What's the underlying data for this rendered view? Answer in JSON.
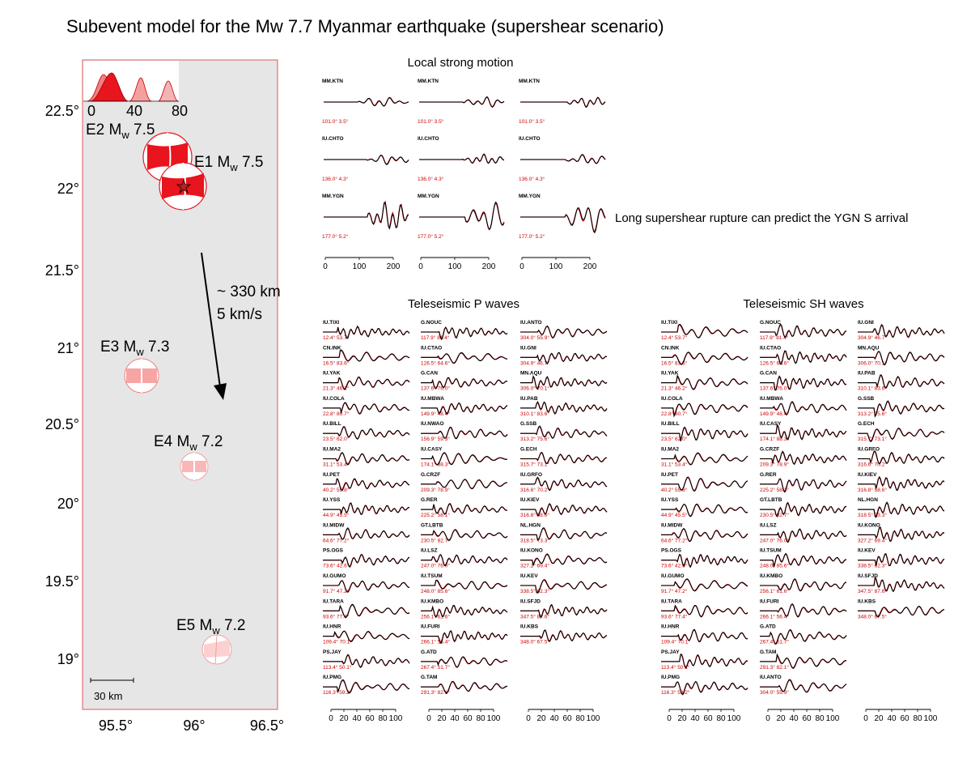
{
  "title": "Subevent model for the Mw 7.7 Myanmar earthquake (supershear scenario)",
  "colors": {
    "red": "#e8141e",
    "trace": "#000000",
    "map_bg": "#e6e6e6",
    "map_border": "#e05a5a"
  },
  "map": {
    "lon_ticks": [
      "95.5°",
      "96°",
      "96.5°"
    ],
    "lat_ticks": [
      "22.5°",
      "22°",
      "21.5°",
      "21°",
      "20.5°",
      "20°",
      "19.5°",
      "19°"
    ],
    "stf_ticks": [
      "0",
      "40",
      "80"
    ],
    "scale_bar": "30 km",
    "arrow_text": [
      "~ 330 km",
      "5 km/s"
    ],
    "subevents": [
      {
        "label": "E2 M",
        "sub": "w",
        "mag": " 7.5"
      },
      {
        "label": "E1 M",
        "sub": "w",
        "mag": " 7.5"
      },
      {
        "label": "E3 M",
        "sub": "w",
        "mag": " 7.3"
      },
      {
        "label": "E4 M",
        "sub": "w",
        "mag": " 7.2"
      },
      {
        "label": "E5 M",
        "sub": "w",
        "mag": " 7.2"
      }
    ]
  },
  "local": {
    "header": "Local strong motion",
    "note": "Long supershear rupture can predict the YGN S arrival",
    "ticks": [
      "0",
      "100",
      "200"
    ],
    "rows": [
      {
        "station": "MM.KTN",
        "dist": "101.0° 3.5°"
      },
      {
        "station": "IU.CHTO",
        "dist": "136.0° 4.3°"
      },
      {
        "station": "MM.YGN",
        "dist": "177.0° 5.2°"
      }
    ]
  },
  "p_waves": {
    "header": "Teleseismic P waves",
    "ticks": [
      "0",
      "20",
      "40",
      "60",
      "80",
      "100"
    ],
    "columns": [
      [
        {
          "station": "IU.TIXI",
          "dist": "12.4° 53.7°"
        },
        {
          "station": "CN.INK",
          "dist": "16.5° 83.6°"
        },
        {
          "station": "IU.YAK",
          "dist": "21.3° 46.2°"
        },
        {
          "station": "IU.COLA",
          "dist": "22.8° 80.7°"
        },
        {
          "station": "IU.BILL",
          "dist": "23.5° 62.0°"
        },
        {
          "station": "IU.MA2",
          "dist": "31.1° 53.4°"
        },
        {
          "station": "IU.PET",
          "dist": "40.2° 55.8°"
        },
        {
          "station": "IU.YSS",
          "dist": "44.9° 45.5°"
        },
        {
          "station": "IU.MIDW",
          "dist": "64.6° 77.2°"
        },
        {
          "station": "PS.OGS",
          "dist": "73.6° 42.6°"
        },
        {
          "station": "IU.GUMO",
          "dist": "91.7° 47.2°"
        },
        {
          "station": "IU.TARA",
          "dist": "93.6° 77.4°"
        },
        {
          "station": "IU.HNR",
          "dist": "109.4° 70.1°"
        },
        {
          "station": "PS.JAY",
          "dist": "113.4° 50.1°"
        },
        {
          "station": "IU.PMG",
          "dist": "116.3° 59.2°"
        }
      ],
      [
        {
          "station": "G.NOUC",
          "dist": "117.9° 81.4°"
        },
        {
          "station": "IU.CTAO",
          "dist": "126.5° 64.6°"
        },
        {
          "station": "G.CAN",
          "dist": "137.6° 76.0°"
        },
        {
          "station": "IU.MBWA",
          "dist": "149.9° 48.4°"
        },
        {
          "station": "IU.NWAO",
          "dist": "156.9° 59.3°"
        },
        {
          "station": "IU.CASY",
          "dist": "174.1° 88.3°"
        },
        {
          "station": "G.CRZF",
          "dist": "209.3° 78.9°"
        },
        {
          "station": "G.RER",
          "dist": "225.2° 58.1°"
        },
        {
          "station": "GT.LBTB",
          "dist": "230.5° 82.7°"
        },
        {
          "station": "IU.LSZ",
          "dist": "247.0° 76.0°"
        },
        {
          "station": "IU.TSUM",
          "dist": "248.0° 85.6°"
        },
        {
          "station": "IU.KMBO",
          "dist": "256.1° 61.6°"
        },
        {
          "station": "IU.FURI",
          "dist": "266.1° 56.4°"
        },
        {
          "station": "G.ATD",
          "dist": "267.4° 51.7°"
        },
        {
          "station": "G.TAM",
          "dist": "291.3° 82.1°"
        }
      ],
      [
        {
          "station": "IU.ANTO",
          "dist": "304.0° 55.9°"
        },
        {
          "station": "IU.GNI",
          "dist": "304.9° 46.7°"
        },
        {
          "station": "MN.AQU",
          "dist": "306.0° 70.1°"
        },
        {
          "station": "IU.PAB",
          "dist": "310.1° 83.6°"
        },
        {
          "station": "G.SSB",
          "dist": "313.2° 75.6°"
        },
        {
          "station": "G.ECH",
          "dist": "315.7° 73.1°"
        },
        {
          "station": "IU.GRFO",
          "dist": "316.6° 70.2°"
        },
        {
          "station": "IU.KIEV",
          "dist": "316.8° 58.6°"
        },
        {
          "station": "NL.HGN",
          "dist": "318.5° 73.3°"
        },
        {
          "station": "IU.KONO",
          "dist": "327.2° 69.4°"
        },
        {
          "station": "IU.KEV",
          "dist": "338.5° 62.3°"
        },
        {
          "station": "IU.SFJD",
          "dist": "347.5° 87.6°"
        },
        {
          "station": "IU.KBS",
          "dist": "348.0° 67.5°"
        }
      ]
    ]
  },
  "sh_waves": {
    "header": "Teleseismic SH waves",
    "ticks": [
      "0",
      "20",
      "40",
      "60",
      "80",
      "100"
    ],
    "columns": [
      [
        {
          "station": "IU.TIXI",
          "dist": "12.4° 53.7°"
        },
        {
          "station": "CN.INK",
          "dist": "16.5° 83.6°"
        },
        {
          "station": "IU.YAK",
          "dist": "21.3° 46.2°"
        },
        {
          "station": "IU.COLA",
          "dist": "22.8° 80.7°"
        },
        {
          "station": "IU.BILL",
          "dist": "23.5° 62.0°"
        },
        {
          "station": "IU.MA2",
          "dist": "31.1° 53.4°"
        },
        {
          "station": "IU.PET",
          "dist": "40.2° 55.8°"
        },
        {
          "station": "IU.YSS",
          "dist": "44.9° 45.5°"
        },
        {
          "station": "IU.MIDW",
          "dist": "64.6° 77.2°"
        },
        {
          "station": "PS.OGS",
          "dist": "73.6° 42.6°"
        },
        {
          "station": "IU.GUMO",
          "dist": "91.7° 47.2°"
        },
        {
          "station": "IU.TARA",
          "dist": "93.6° 77.4°"
        },
        {
          "station": "IU.HNR",
          "dist": "109.4° 70.1°"
        },
        {
          "station": "PS.JAY",
          "dist": "113.4° 50.1°"
        },
        {
          "station": "IU.PMG",
          "dist": "116.3° 59.2°"
        }
      ],
      [
        {
          "station": "G.NOUC",
          "dist": "117.9° 81.4°"
        },
        {
          "station": "IU.CTAO",
          "dist": "126.5° 64.6°"
        },
        {
          "station": "G.CAN",
          "dist": "137.6° 76.0°"
        },
        {
          "station": "IU.MBWA",
          "dist": "149.9° 48.4°"
        },
        {
          "station": "IU.CASY",
          "dist": "174.1° 88.3°"
        },
        {
          "station": "G.CRZF",
          "dist": "209.3° 78.9°"
        },
        {
          "station": "G.RER",
          "dist": "225.2° 58.1°"
        },
        {
          "station": "GT.LBTB",
          "dist": "230.5° 82.7°"
        },
        {
          "station": "IU.LSZ",
          "dist": "247.0° 76.0°"
        },
        {
          "station": "IU.TSUM",
          "dist": "248.0° 85.6°"
        },
        {
          "station": "IU.KMBO",
          "dist": "256.1° 61.6°"
        },
        {
          "station": "IU.FURI",
          "dist": "266.1° 56.4°"
        },
        {
          "station": "G.ATD",
          "dist": "267.4° 51.7°"
        },
        {
          "station": "G.TAM",
          "dist": "291.3° 82.1°"
        },
        {
          "station": "IU.ANTO",
          "dist": "304.0° 55.9°"
        }
      ],
      [
        {
          "station": "IU.GNI",
          "dist": "304.9° 46.7°"
        },
        {
          "station": "MN.AQU",
          "dist": "306.0° 70.1°"
        },
        {
          "station": "IU.PAB",
          "dist": "310.1° 83.6°"
        },
        {
          "station": "G.SSB",
          "dist": "313.2° 75.6°"
        },
        {
          "station": "G.ECH",
          "dist": "315.7° 73.1°"
        },
        {
          "station": "IU.GRFO",
          "dist": "316.6° 70.2°"
        },
        {
          "station": "IU.KIEV",
          "dist": "316.8° 58.6°"
        },
        {
          "station": "NL.HGN",
          "dist": "318.5° 73.3°"
        },
        {
          "station": "IU.KONO",
          "dist": "327.2° 69.4°"
        },
        {
          "station": "IU.KEV",
          "dist": "338.5° 62.3°"
        },
        {
          "station": "IU.SFJD",
          "dist": "347.5° 87.6°"
        },
        {
          "station": "IU.KBS",
          "dist": "348.0° 67.5°"
        }
      ]
    ]
  }
}
